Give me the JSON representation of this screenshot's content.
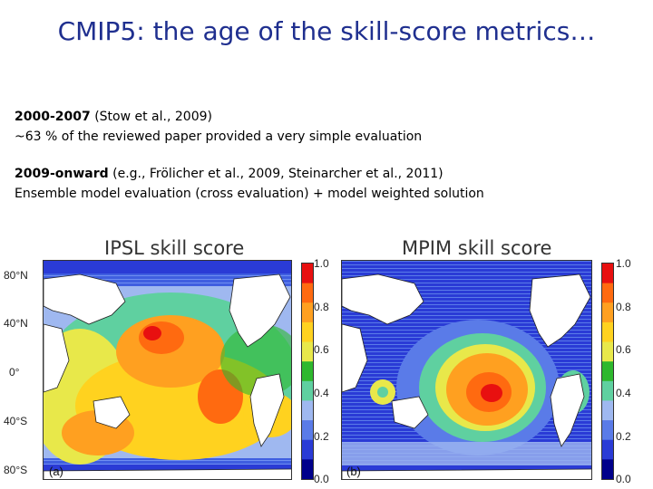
{
  "slide": {
    "title": "CMIP5: the age of the skill-score metrics…"
  },
  "text": {
    "p1_bold": "2000-2007",
    "p1_rest": " (Stow et al., 2009)",
    "p1_line2": "~63 % of the reviewed paper provided a very simple evaluation",
    "p2_bold": "2009-onward",
    "p2_rest": " (e.g., Frölicher et al., 2009, Steinarcher et al., 2011)",
    "p2_line2": "Ensemble model evaluation (cross evaluation) +  model weighted solution"
  },
  "figure": {
    "panels": [
      {
        "title": "IPSL skill score",
        "letter": "(a)"
      },
      {
        "title": "MPIM skill score",
        "letter": "(b)"
      }
    ],
    "lat_labels": [
      "80°N",
      "40°N",
      "0°",
      "40°S",
      "80°S"
    ],
    "colorbar_ticks": [
      "1.0",
      "0.8",
      "0.6",
      "0.4",
      "0.2",
      "0.0"
    ],
    "colors": {
      "c00": "#00008b",
      "c01": "#2a3bd6",
      "c02": "#5a7be8",
      "c03": "#9fb8f0",
      "c04": "#5fd0a0",
      "c05": "#2eb82e",
      "c06": "#e8e84a",
      "c07": "#ffd21f",
      "c08": "#ffa020",
      "c09": "#ff6a10",
      "c10": "#e81010"
    }
  }
}
